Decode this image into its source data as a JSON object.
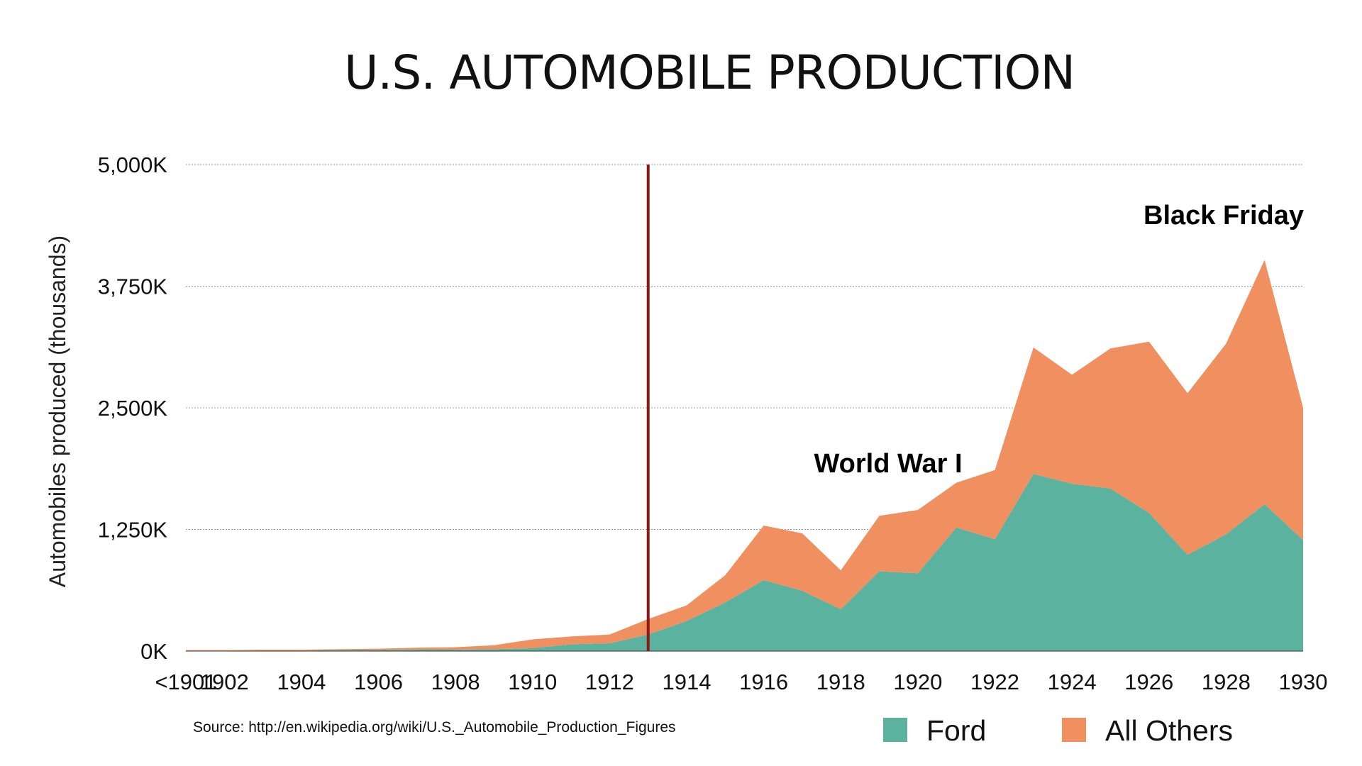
{
  "chart_data": {
    "type": "area",
    "stacked": true,
    "title": "U.S. AUTOMOBILE PRODUCTION",
    "ylabel": "Automobiles produced (thousands)",
    "xlabel": "",
    "x": [
      "<1901",
      "1902",
      "1903",
      "1904",
      "1905",
      "1906",
      "1907",
      "1908",
      "1909",
      "1910",
      "1911",
      "1912",
      "1913",
      "1914",
      "1915",
      "1916",
      "1917",
      "1918",
      "1919",
      "1920",
      "1921",
      "1922",
      "1923",
      "1924",
      "1925",
      "1926",
      "1927",
      "1928",
      "1929",
      "1930"
    ],
    "x_tick_labels": [
      "<1901",
      "1902",
      "1904",
      "1906",
      "1908",
      "1910",
      "1912",
      "1914",
      "1916",
      "1918",
      "1920",
      "1922",
      "1924",
      "1926",
      "1928",
      "1930"
    ],
    "ylim": [
      0,
      5000
    ],
    "y_ticks": [
      0,
      1250,
      2500,
      3750,
      5000
    ],
    "y_tick_labels": [
      "0K",
      "1,250K",
      "2,500K",
      "3,750K",
      "5,000K"
    ],
    "grid": true,
    "series": [
      {
        "name": "Ford",
        "color": "#5bb39f",
        "values": [
          5,
          5,
          5,
          5,
          10,
          10,
          15,
          15,
          20,
          30,
          70,
          80,
          170,
          310,
          500,
          730,
          620,
          430,
          820,
          800,
          1270,
          1150,
          1820,
          1720,
          1670,
          1420,
          990,
          1200,
          1510,
          1140
        ]
      },
      {
        "name": "All Others",
        "color": "#f08f5f",
        "values": [
          5,
          5,
          10,
          10,
          10,
          15,
          20,
          25,
          40,
          90,
          80,
          90,
          160,
          160,
          280,
          560,
          590,
          400,
          570,
          650,
          460,
          710,
          1300,
          1120,
          1440,
          1760,
          1660,
          1960,
          2510,
          1360
        ]
      }
    ],
    "annotations": [
      {
        "text": "World War I",
        "x": "1917"
      },
      {
        "text": "Black Friday",
        "x": "1929"
      }
    ],
    "vertical_line": {
      "x": "1913",
      "color": "#8b1a14"
    },
    "legend_position": "bottom-right",
    "source": "Source: http://en.wikipedia.org/wiki/U.S._Automobile_Production_Figures"
  }
}
